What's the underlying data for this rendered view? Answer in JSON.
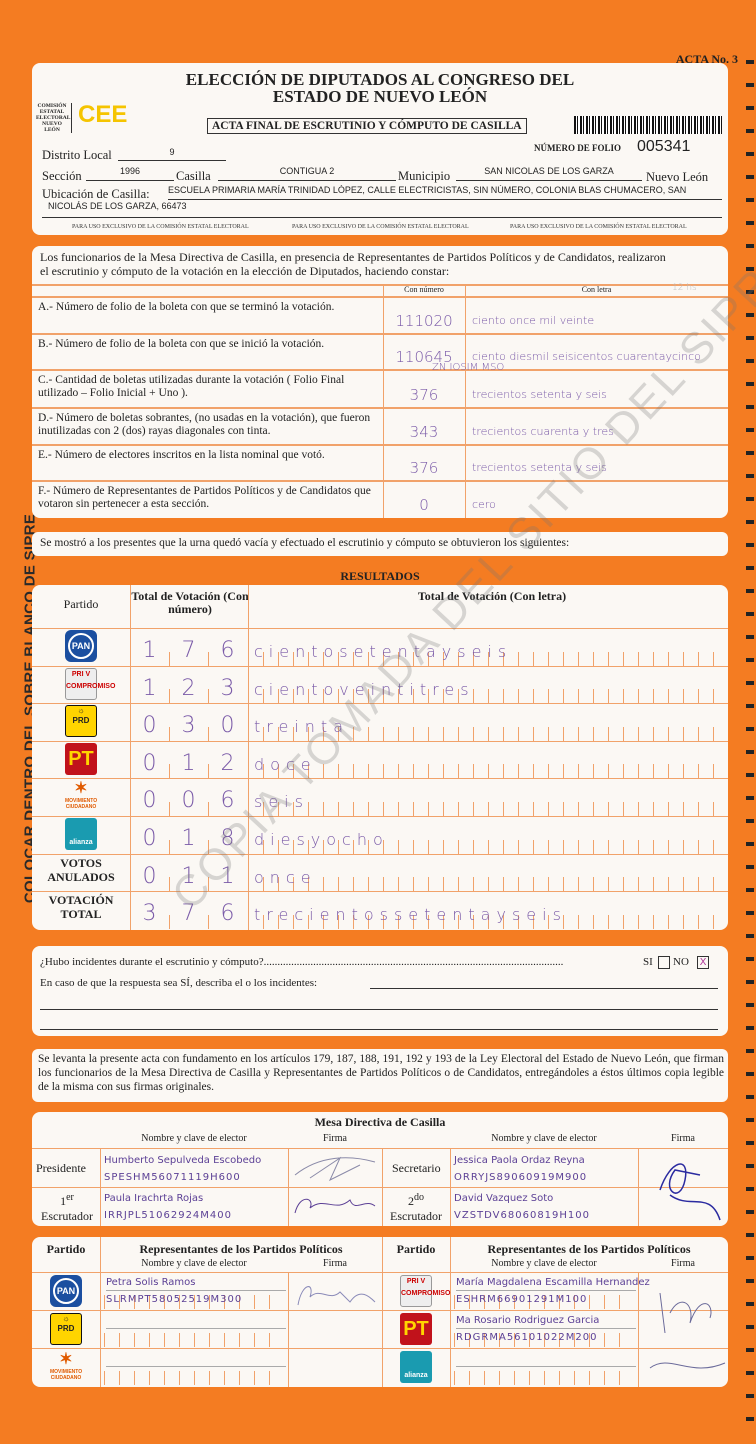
{
  "acta_no": "ACTA No. 3",
  "side_text": "COLOCAR DENTRO DEL SOBRE BLANCO DE SIPRE",
  "watermark": "COPIA TOMADA DEL SITIO DEL SIPRE",
  "header": {
    "title_line1": "ELECCIÓN DE DIPUTADOS AL CONGRESO DEL",
    "title_line2": "ESTADO DE NUEVO LEÓN",
    "org_name": "COMISIÓN ESTATAL ELECTORAL NUEVO LEÓN",
    "org_logo": "CEE",
    "subtitle": "ACTA FINAL DE ESCRUTINIO Y CÓMPUTO DE CASILLA",
    "folio_label": "NÚMERO DE FOLIO",
    "folio": "005341",
    "distrito_label": "Distrito Local",
    "distrito": "9",
    "seccion_label": "Sección",
    "seccion": "1996",
    "casilla_label": "Casilla",
    "casilla": "CONTIGUA 2",
    "municipio_label": "Municipio",
    "municipio": "SAN NICOLAS DE LOS GARZA",
    "estado": "Nuevo León",
    "ubicacion_label": "Ubicación de Casilla:",
    "ubicacion_line1": "ESCUELA PRIMARIA MARÍA TRINIDAD LÓPEZ, CALLE ELECTRICISTAS, SIN NÚMERO, COLONIA BLAS CHUMACERO, SAN",
    "ubicacion_line2": "NICOLÁS DE LOS GARZA, 66473",
    "exclusive_note": "PARA USO EXCLUSIVO DE LA COMISIÓN ESTATAL ELECTORAL"
  },
  "constancia": {
    "intro1": "Los funcionarios de la Mesa Directiva de Casilla, en presencia de Representantes de Partidos Políticos  y de Candidatos, realizaron",
    "intro2": "el escrutinio y cómputo de la votación en la elección de Diputados, haciendo constar:",
    "col_numero": "Con número",
    "col_letra": "Con letra",
    "margin_note": "12 hs",
    "rows": [
      {
        "label": "A.- Número de folio de la boleta con que se terminó la votación.",
        "numero": "111020",
        "letra": "ciento once mil veinte"
      },
      {
        "label": "B.- Número de folio de la boleta con que se inició la votación.",
        "numero": "110645",
        "letra": "ciento diesmil seisicentos cuarentaycinco"
      },
      {
        "label": "C.- Cantidad de boletas utilizadas durante la votación ( Folio Final utilizado – Folio Inicial + Uno ).",
        "numero": "376",
        "letra": "trecientos setenta y seis",
        "note": "ZN IOSIM MSO"
      },
      {
        "label": "D.- Número de boletas sobrantes, (no usadas en la votación), que fueron inutilizadas con 2 (dos) rayas diagonales con tinta.",
        "numero": "343",
        "letra": "trecientos cuarenta y tres"
      },
      {
        "label": "E.- Número de electores inscritos en la lista nominal que votó.",
        "numero": "376",
        "letra": "trecientos setenta y seis"
      },
      {
        "label": "F.- Número de Representantes de Partidos Políticos y de Candidatos que votaron sin pertenecer a esta sección.",
        "numero": "0",
        "letra": "cero"
      }
    ]
  },
  "statement": "Se mostró a los presentes que la urna quedó vacía y efectuado el escrutinio y cómputo se obtuvieron los siguientes:",
  "resultados": {
    "title": "RESULTADOS",
    "col_partido": "Partido",
    "col_numero": "Total de Votación (Con número)",
    "col_letra": "Total de Votación (Con letra)",
    "rows": [
      {
        "party": "PAN",
        "logo": "PAN",
        "digits": [
          "1",
          "7",
          "6"
        ],
        "letra": "cientosetentayseis"
      },
      {
        "party": "PRI-PVE Compromiso por Nuevo León",
        "logo": "PRI",
        "sublogo": "COMPROMISO",
        "digits": [
          "1",
          "2",
          "3"
        ],
        "letra": "cientoveintitres"
      },
      {
        "party": "PRD",
        "logo": "PRD",
        "digits": [
          "0",
          "3",
          "0"
        ],
        "letra": "treinta"
      },
      {
        "party": "PT",
        "logo": "PT",
        "digits": [
          "0",
          "1",
          "2"
        ],
        "letra": "doce"
      },
      {
        "party": "Movimiento Ciudadano",
        "logo": "MOVIMIENTO CIUDADANO",
        "digits": [
          "0",
          "0",
          "6"
        ],
        "letra": "seis"
      },
      {
        "party": "Nueva Alianza",
        "logo": "alianza",
        "digits": [
          "0",
          "1",
          "8"
        ],
        "letra": "diesyocho"
      },
      {
        "party": "VOTOS ANULADOS",
        "label": "VOTOS ANULADOS",
        "digits": [
          "0",
          "1",
          "1"
        ],
        "letra": "once"
      },
      {
        "party": "VOTACIÓN TOTAL",
        "label": "VOTACIÓN TOTAL",
        "digits": [
          "3",
          "7",
          "6"
        ],
        "letra": "trecientossetentayseis"
      }
    ]
  },
  "incidentes": {
    "question": "¿Hubo incidentes durante el escrutinio y cómputo?.............................................................................................................",
    "si": "SI",
    "no": "NO",
    "si_checked": false,
    "no_checked": true,
    "no_mark": "X",
    "describe": "En caso de que la respuesta sea SÍ, describa el o los incidentes:"
  },
  "legal": "Se levanta la presente acta con fundamento en los artículos 179, 187, 188, 191, 192 y 193 de la Ley Electoral del Estado de Nuevo León, que firman los funcionarios de la Mesa Directiva de Casilla y Representantes de  Partidos Políticos o de Candidatos, entregándoles a éstos últimos copia legible de la misma con sus firmas originales.",
  "mesa": {
    "title": "Mesa Directiva de Casilla",
    "col_nombre": "Nombre y clave de elector",
    "col_firma": "Firma",
    "presidente": {
      "role": "Presidente",
      "name": "Humberto Sepulveda Escobedo",
      "clave": "SPESHM56071119H600"
    },
    "secretario": {
      "role": "Secretario",
      "name": "Jessica Paola Ordaz Reyna",
      "clave": "ORRYJS89060919M900"
    },
    "escrutador1": {
      "role_sup": "er",
      "role_num": "1",
      "role": "Escrutador",
      "name": "Paula Irachrta Rojas",
      "clave": "IRRJPL51062924M400"
    },
    "escrutador2": {
      "role_sup": "do",
      "role_num": "2",
      "role": "Escrutador",
      "name": "David Vazquez Soto",
      "clave": "VZSTDV68060819H100"
    }
  },
  "representantes": {
    "col_partido": "Partido",
    "title": "Representantes de los Partidos Políticos",
    "col_nombre": "Nombre y clave de elector",
    "col_firma": "Firma",
    "left": [
      {
        "logo": "PAN",
        "name": "Petra Solis Ramos",
        "clave": "SLRMPT58052519M300"
      },
      {
        "logo": "PRD",
        "name": "",
        "clave": ""
      },
      {
        "logo": "MOVIMIENTO CIUDADANO",
        "name": "",
        "clave": ""
      }
    ],
    "right": [
      {
        "logo": "PRI",
        "name": "María Magdalena Escamilla Hernandez",
        "clave": "ESHRM66901291M100"
      },
      {
        "logo": "PT",
        "name": "Ma Rosario Rodriguez Garcia",
        "clave": "RDGRMA56101022M200"
      },
      {
        "logo": "alianza",
        "name": "",
        "clave": ""
      }
    ]
  }
}
